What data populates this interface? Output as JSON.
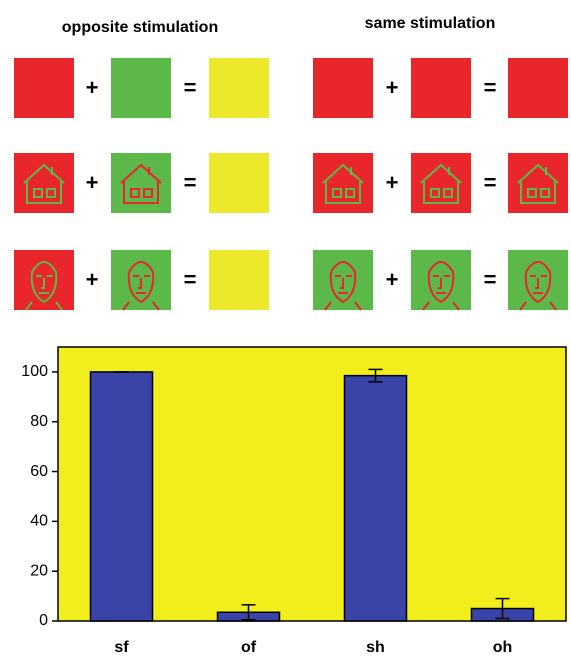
{
  "diagram": {
    "titles": [
      "opposite stimulation",
      "same stimulation"
    ],
    "plus": "+",
    "equals": "="
  },
  "chart_data": {
    "type": "bar",
    "categories": [
      "sf",
      "of",
      "sh",
      "oh"
    ],
    "values": [
      100,
      3.5,
      98.5,
      5
    ],
    "errors": [
      0,
      3,
      2.5,
      4
    ],
    "color": "#3a44a8",
    "plot_background": "#f2ee1c",
    "ylim": [
      0,
      110
    ],
    "yticks": [
      0,
      20,
      40,
      60,
      80,
      100
    ]
  }
}
